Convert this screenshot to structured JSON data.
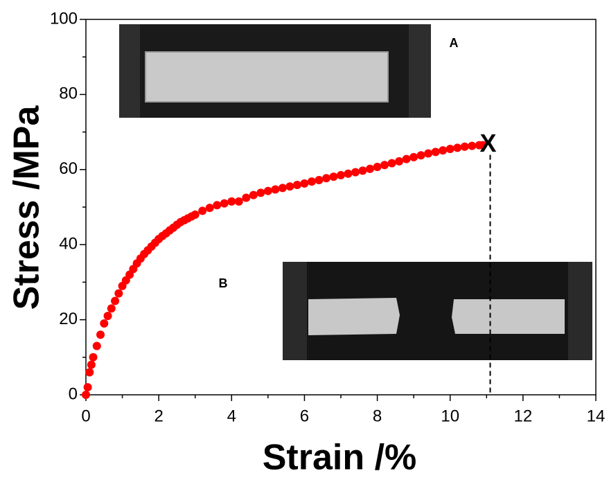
{
  "chart_data": {
    "type": "scatter",
    "x_label": "Strain /%",
    "y_label": "Stress /MPa",
    "xlim": [
      0,
      14
    ],
    "xticks": [
      0,
      2,
      4,
      6,
      8,
      10,
      12,
      14
    ],
    "ylim": [
      0,
      100
    ],
    "yticks": [
      0,
      20,
      40,
      60,
      80,
      100
    ],
    "color": "#ff0000",
    "x": [
      0,
      0.05,
      0.1,
      0.15,
      0.2,
      0.3,
      0.4,
      0.5,
      0.6,
      0.7,
      0.8,
      0.9,
      1.0,
      1.1,
      1.2,
      1.3,
      1.4,
      1.5,
      1.6,
      1.7,
      1.8,
      1.9,
      2.0,
      2.1,
      2.2,
      2.3,
      2.4,
      2.5,
      2.6,
      2.7,
      2.8,
      2.9,
      3.0,
      3.2,
      3.4,
      3.6,
      3.8,
      4.0,
      4.2,
      4.4,
      4.6,
      4.8,
      5.0,
      5.2,
      5.4,
      5.6,
      5.8,
      6.0,
      6.2,
      6.4,
      6.6,
      6.8,
      7.0,
      7.2,
      7.4,
      7.6,
      7.8,
      8.0,
      8.2,
      8.4,
      8.6,
      8.8,
      9.0,
      9.2,
      9.4,
      9.6,
      9.8,
      10.0,
      10.2,
      10.4,
      10.6,
      10.8,
      10.9
    ],
    "values": [
      0,
      2,
      6,
      8,
      10,
      13,
      16,
      19,
      21,
      23,
      25,
      27,
      29,
      30.5,
      32,
      33.5,
      35,
      36.3,
      37.5,
      38.5,
      39.5,
      40.5,
      41.5,
      42.3,
      43,
      43.8,
      44.5,
      45.3,
      46,
      46.5,
      47,
      47.5,
      48,
      49,
      49.8,
      50.5,
      51,
      51.5,
      51.5,
      52.5,
      53.2,
      53.8,
      54.3,
      54.7,
      55.1,
      55.5,
      55.9,
      56.3,
      56.8,
      57.2,
      57.7,
      58.1,
      58.5,
      58.9,
      59.3,
      59.7,
      60.2,
      60.7,
      61.2,
      61.7,
      62.2,
      62.8,
      63.3,
      63.8,
      64.3,
      64.7,
      65.1,
      65.5,
      65.8,
      66.1,
      66.3,
      66.5,
      66.5
    ],
    "fracture": {
      "label": "X",
      "x": 11.1,
      "y": 66.5
    },
    "insets": [
      {
        "label": "A"
      },
      {
        "label": "B"
      }
    ]
  }
}
